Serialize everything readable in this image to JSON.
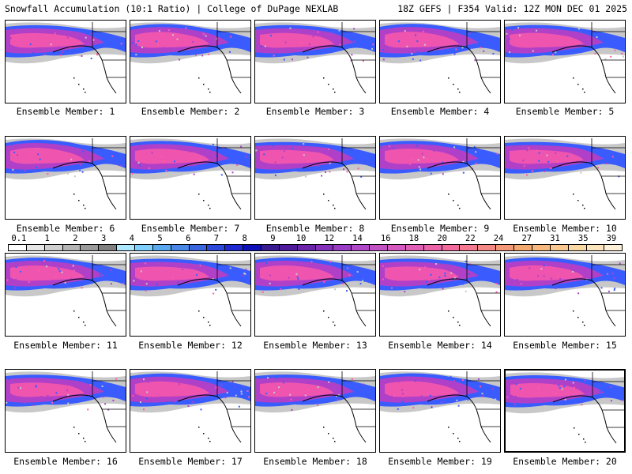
{
  "header": {
    "title": "Snowfall Accumulation (10:1 Ratio) | College of DuPage NEXLAB",
    "run_info": "18Z GEFS | F354 Valid: 12Z MON DEC 01 2025"
  },
  "colors": {
    "water": "#ffffff",
    "land": "#ffffff",
    "border": "#000000",
    "light_snow": "#c8c8c8",
    "blue_snow": "#3a5cff",
    "heavy_snow": "#b040c8",
    "extreme_snow": "#ff5aa8"
  },
  "panels": [
    {
      "label": "Ensemble Member: 1"
    },
    {
      "label": "Ensemble Member: 2"
    },
    {
      "label": "Ensemble Member: 3"
    },
    {
      "label": "Ensemble Member: 4"
    },
    {
      "label": "Ensemble Member: 5"
    },
    {
      "label": "Ensemble Member: 6"
    },
    {
      "label": "Ensemble Member: 7"
    },
    {
      "label": "Ensemble Member: 8"
    },
    {
      "label": "Ensemble Member: 9"
    },
    {
      "label": "Ensemble Member: 10"
    },
    {
      "label": "Ensemble Member: 11"
    },
    {
      "label": "Ensemble Member: 12"
    },
    {
      "label": "Ensemble Member: 13"
    },
    {
      "label": "Ensemble Member: 14"
    },
    {
      "label": "Ensemble Member: 15"
    },
    {
      "label": "Ensemble Member: 16"
    },
    {
      "label": "Ensemble Member: 17"
    },
    {
      "label": "Ensemble Member: 18"
    },
    {
      "label": "Ensemble Member: 19"
    },
    {
      "label": "Ensemble Member: 20"
    }
  ],
  "colorbar": {
    "labels": [
      "0.1",
      "1",
      "2",
      "3",
      "4",
      "5",
      "6",
      "7",
      "8",
      "9",
      "10",
      "12",
      "14",
      "16",
      "18",
      "20",
      "22",
      "24",
      "27",
      "31",
      "35",
      "39"
    ],
    "colors": [
      "#ffffff",
      "#e6e6e6",
      "#cfcfcf",
      "#b4b4b4",
      "#9a9a9a",
      "#7f7f7f",
      "#aee8ff",
      "#7fd0ff",
      "#5aa8f0",
      "#4a88e8",
      "#3a66e0",
      "#2b48d8",
      "#1e2ad0",
      "#1010b8",
      "#3a1a90",
      "#501a9c",
      "#6a24aa",
      "#8430b8",
      "#9a3cc4",
      "#b048c8",
      "#c252c4",
      "#d45ac0",
      "#e05eb4",
      "#ea62a8",
      "#f26a9c",
      "#f47890",
      "#f48884",
      "#f49878",
      "#f4a870",
      "#f6b87c",
      "#f8c890",
      "#fad8a4",
      "#fce4bc",
      "#fff0d8"
    ]
  }
}
